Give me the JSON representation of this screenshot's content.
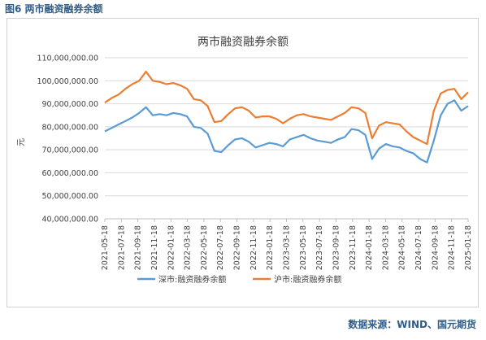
{
  "figure_caption": "图6 两市融资融券余额",
  "source_note": "数据来源：WIND、国元期货",
  "colors": {
    "shenzhen": "#5b9bd5",
    "shanghai": "#ed7d31",
    "grid": "#d9d9d9",
    "caption": "#2f5d8a"
  },
  "chart_data": {
    "type": "line",
    "title": "两市融资融券余额",
    "ylabel": "元",
    "xlabel": "",
    "ylim": [
      40000000,
      110000000
    ],
    "y_ticks": [
      40000000,
      50000000,
      60000000,
      70000000,
      80000000,
      90000000,
      100000000,
      110000000
    ],
    "y_tick_labels": [
      "40,000,000.00",
      "50,000,000.00",
      "60,000,000.00",
      "70,000,000.00",
      "80,000,000.00",
      "90,000,000.00",
      "100,000,000.00",
      "110,000,000.00"
    ],
    "x_tick_labels": [
      "2021-05-18",
      "2021-07-18",
      "2021-09-18",
      "2021-11-18",
      "2022-01-18",
      "2022-03-18",
      "2022-05-18",
      "2022-07-18",
      "2022-09-18",
      "2022-11-18",
      "2023-01-18",
      "2023-03-18",
      "2023-05-18",
      "2023-07-18",
      "2023-09-18",
      "2023-11-18",
      "2024-01-18",
      "2024-03-18",
      "2024-05-18",
      "2024-07-18",
      "2024-09-18",
      "2024-11-18",
      "2025-01-18"
    ],
    "legend_position": "bottom",
    "grid": true,
    "series": [
      {
        "name": "深市:融资融券余额",
        "color": "#5b9bd5",
        "values": [
          78.0,
          79.5,
          81.0,
          82.5,
          84.0,
          86.0,
          88.5,
          85.0,
          85.5,
          85.0,
          86.0,
          85.5,
          84.5,
          80.0,
          79.5,
          77.0,
          69.5,
          69.0,
          72.0,
          74.5,
          75.0,
          73.5,
          71.0,
          72.0,
          73.0,
          72.5,
          71.5,
          74.5,
          75.5,
          76.5,
          75.0,
          74.0,
          73.5,
          73.0,
          74.5,
          75.5,
          79.0,
          78.5,
          76.5,
          66.0,
          70.5,
          72.5,
          71.5,
          71.0,
          69.5,
          68.5,
          66.0,
          64.5,
          74.0,
          85.0,
          90.0,
          91.5,
          87.0,
          89.0
        ]
      },
      {
        "name": "沪市:融资融券余额",
        "color": "#ed7d31",
        "values": [
          90.5,
          92.5,
          94.0,
          96.5,
          98.5,
          100.0,
          104.0,
          100.0,
          99.5,
          98.5,
          99.0,
          98.0,
          96.5,
          92.0,
          91.5,
          89.0,
          82.0,
          82.5,
          85.5,
          88.0,
          88.5,
          87.0,
          84.0,
          84.5,
          84.5,
          83.5,
          81.5,
          83.5,
          85.0,
          85.5,
          84.5,
          84.0,
          83.5,
          83.0,
          84.5,
          86.0,
          88.5,
          88.0,
          86.0,
          75.0,
          80.5,
          82.0,
          81.5,
          81.0,
          78.0,
          75.5,
          74.0,
          72.5,
          87.0,
          94.5,
          96.0,
          96.5,
          92.0,
          95.0
        ]
      }
    ]
  }
}
